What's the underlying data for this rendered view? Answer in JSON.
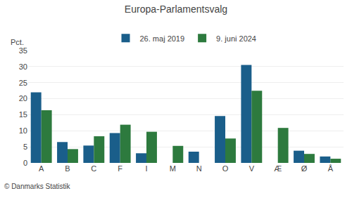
{
  "chart_data": {
    "type": "bar",
    "title": "Europa-Parlamentsvalg",
    "ylabel": "Pct.",
    "annotations": [
      "© Danmarks Statistik"
    ],
    "categories": [
      "A",
      "B",
      "C",
      "F",
      "I",
      "M",
      "N",
      "O",
      "V",
      "Æ",
      "Ø",
      "Å"
    ],
    "series": [
      {
        "name": "26. maj 2019",
        "color": "#1A5E8A",
        "values": [
          22.0,
          6.5,
          5.4,
          9.3,
          3.0,
          0.0,
          3.5,
          14.6,
          30.5,
          0.0,
          3.8,
          2.0
        ]
      },
      {
        "name": "9. juni 2024",
        "color": "#2D7A3E",
        "values": [
          16.4,
          4.3,
          8.3,
          11.9,
          9.7,
          5.3,
          0.0,
          7.6,
          22.5,
          10.9,
          2.8,
          1.3
        ]
      }
    ],
    "ylim": [
      0,
      35
    ],
    "yticks": [
      0,
      5,
      10,
      15,
      20,
      25,
      30,
      35
    ],
    "grid": true,
    "legend": "top"
  }
}
